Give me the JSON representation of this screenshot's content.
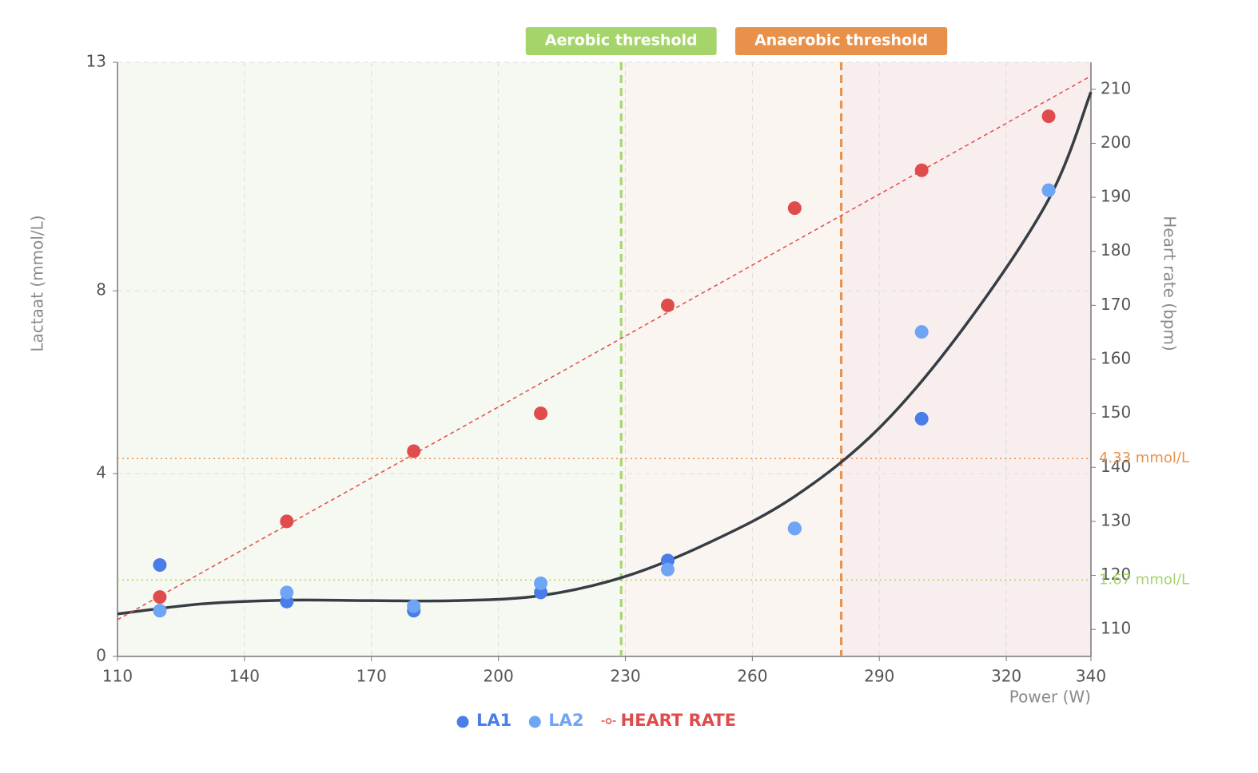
{
  "chart_data": {
    "type": "scatter",
    "x_label": "Power (W)",
    "y_label": "Lactaat (mmol/L)",
    "y2_label": "Heart rate (bpm)",
    "x": [
      120,
      150,
      180,
      210,
      240,
      270,
      300,
      330
    ],
    "series": [
      {
        "name": "LA1",
        "color": "#4a7de8",
        "values": [
          2.0,
          1.2,
          1.0,
          1.4,
          2.1,
          2.8,
          5.2,
          10.2
        ]
      },
      {
        "name": "LA2",
        "color": "#6fa5f5",
        "values": [
          1.0,
          1.4,
          1.1,
          1.6,
          1.9,
          2.8,
          7.1,
          10.2
        ]
      },
      {
        "name": "HEART RATE",
        "color": "#e04b4b",
        "axis": "y2",
        "trend": true,
        "values": [
          116,
          130,
          143,
          150,
          170,
          188,
          195,
          205
        ]
      }
    ],
    "curve": {
      "color": "#363d44",
      "x": [
        110,
        130,
        150,
        170,
        190,
        210,
        230,
        250,
        270,
        290,
        310,
        330,
        340
      ],
      "values": [
        0.93,
        1.15,
        1.23,
        1.22,
        1.22,
        1.33,
        1.75,
        2.5,
        3.5,
        5.0,
        7.2,
        10.0,
        12.35
      ]
    },
    "thresholds": [
      {
        "name": "Aerobic threshold",
        "power": 229,
        "lactate": 1.67,
        "lactate_label": "1.67 mmol/L",
        "color": "#a5d46a",
        "zone_color": "#f6f9f1"
      },
      {
        "name": "Anaerobic threshold",
        "power": 281,
        "lactate": 4.33,
        "lactate_label": "4.33 mmol/L",
        "color": "#e8914a",
        "zone_color": "#faf5f1"
      }
    ],
    "last_zone_color": "#f9eeee",
    "xlim": [
      110,
      340
    ],
    "xticks": [
      110,
      140,
      170,
      200,
      230,
      260,
      290,
      320,
      340
    ],
    "ylim": [
      0,
      13
    ],
    "yticks": [
      0,
      4,
      8,
      13
    ],
    "y2lim": [
      105,
      215
    ],
    "y2ticks": [
      110,
      120,
      130,
      140,
      150,
      160,
      170,
      180,
      190,
      200,
      210
    ],
    "grid": true
  }
}
